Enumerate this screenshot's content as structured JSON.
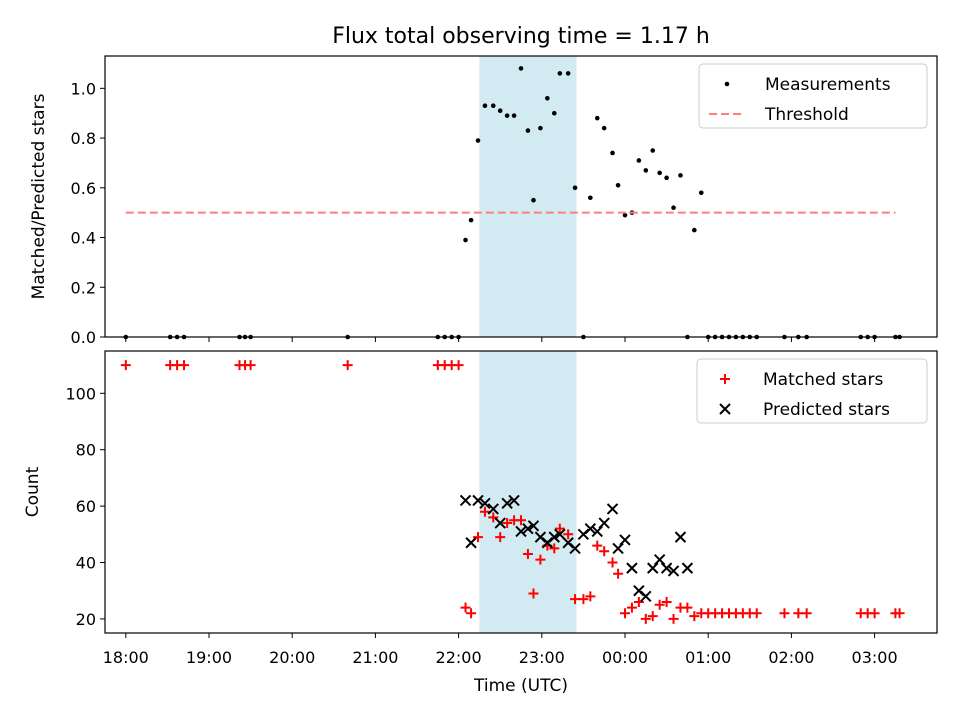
{
  "figure": {
    "title": "Flux total observing time = 1.17 h"
  },
  "chart_data": [
    {
      "type": "scatter",
      "ylabel": "Matched/Predicted stars",
      "xlim": [
        "17:45",
        "03:45"
      ],
      "ylim": [
        0,
        1.13
      ],
      "yticks": [
        "0.0",
        "0.2",
        "0.4",
        "0.6",
        "0.8",
        "1.0"
      ],
      "highlight_span": [
        "22:15",
        "23:25"
      ],
      "highlight_color": "#add8e6",
      "legend": {
        "placement": "top-right",
        "entries": [
          "Measurements",
          "Threshold"
        ]
      },
      "series": [
        {
          "name": "Measurements",
          "marker": "dot",
          "color": "#000000",
          "points": [
            [
              "18:00",
              0
            ],
            [
              "18:32",
              0
            ],
            [
              "18:37",
              0
            ],
            [
              "18:42",
              0
            ],
            [
              "19:22",
              0
            ],
            [
              "19:26",
              0
            ],
            [
              "19:30",
              0
            ],
            [
              "20:40",
              0
            ],
            [
              "21:45",
              0
            ],
            [
              "21:50",
              0
            ],
            [
              "21:55",
              0
            ],
            [
              "22:00",
              0
            ],
            [
              "22:05",
              0.39
            ],
            [
              "22:09",
              0.47
            ],
            [
              "22:14",
              0.79
            ],
            [
              "22:19",
              0.93
            ],
            [
              "22:25",
              0.93
            ],
            [
              "22:30",
              0.91
            ],
            [
              "22:35",
              0.89
            ],
            [
              "22:40",
              0.89
            ],
            [
              "22:45",
              1.08
            ],
            [
              "22:50",
              0.83
            ],
            [
              "22:54",
              0.55
            ],
            [
              "22:59",
              0.84
            ],
            [
              "23:04",
              0.96
            ],
            [
              "23:09",
              0.9
            ],
            [
              "23:13",
              1.06
            ],
            [
              "23:19",
              1.06
            ],
            [
              "23:24",
              0.6
            ],
            [
              "23:30",
              0
            ],
            [
              "23:35",
              0.56
            ],
            [
              "23:40",
              0.88
            ],
            [
              "23:45",
              0.84
            ],
            [
              "23:51",
              0.74
            ],
            [
              "23:55",
              0.61
            ],
            [
              "00:00",
              0.49
            ],
            [
              "00:05",
              0.5
            ],
            [
              "00:10",
              0.71
            ],
            [
              "00:15",
              0.67
            ],
            [
              "00:20",
              0.75
            ],
            [
              "00:25",
              0.66
            ],
            [
              "00:30",
              0.64
            ],
            [
              "00:35",
              0.52
            ],
            [
              "00:40",
              0.65
            ],
            [
              "00:45",
              0
            ],
            [
              "00:50",
              0.43
            ],
            [
              "00:55",
              0.58
            ],
            [
              "01:00",
              0
            ],
            [
              "01:05",
              0
            ],
            [
              "01:10",
              0
            ],
            [
              "01:15",
              0
            ],
            [
              "01:20",
              0
            ],
            [
              "01:25",
              0
            ],
            [
              "01:30",
              0
            ],
            [
              "01:35",
              0
            ],
            [
              "01:55",
              0
            ],
            [
              "02:05",
              0
            ],
            [
              "02:11",
              0
            ],
            [
              "02:50",
              0
            ],
            [
              "02:55",
              0
            ],
            [
              "03:00",
              0
            ],
            [
              "03:15",
              0
            ],
            [
              "03:18",
              0
            ]
          ]
        },
        {
          "name": "Threshold",
          "style": "dashed",
          "color": "#ff7f7f",
          "points": [
            [
              "18:00",
              0.5
            ],
            [
              "03:15",
              0.5
            ]
          ]
        }
      ]
    },
    {
      "type": "scatter",
      "xlabel": "Time (UTC)",
      "ylabel": "Count",
      "xticks": [
        "18:00",
        "19:00",
        "20:00",
        "21:00",
        "22:00",
        "23:00",
        "00:00",
        "01:00",
        "02:00",
        "03:00"
      ],
      "xlim": [
        "17:45",
        "03:45"
      ],
      "ylim": [
        15,
        115
      ],
      "yticks": [
        "20",
        "40",
        "60",
        "80",
        "100"
      ],
      "highlight_span": [
        "22:15",
        "23:25"
      ],
      "highlight_color": "#add8e6",
      "legend": {
        "placement": "top-right",
        "entries": [
          "Matched stars",
          "Predicted stars"
        ]
      },
      "series": [
        {
          "name": "Matched stars",
          "marker": "plus",
          "color": "#ff0000",
          "points": [
            [
              "18:00",
              110
            ],
            [
              "18:32",
              110
            ],
            [
              "18:37",
              110
            ],
            [
              "18:42",
              110
            ],
            [
              "19:22",
              110
            ],
            [
              "19:26",
              110
            ],
            [
              "19:30",
              110
            ],
            [
              "20:40",
              110
            ],
            [
              "21:45",
              110
            ],
            [
              "21:50",
              110
            ],
            [
              "21:55",
              110
            ],
            [
              "22:00",
              110
            ],
            [
              "22:05",
              24
            ],
            [
              "22:09",
              22
            ],
            [
              "22:14",
              49
            ],
            [
              "22:19",
              58
            ],
            [
              "22:25",
              56
            ],
            [
              "22:30",
              49
            ],
            [
              "22:35",
              54
            ],
            [
              "22:40",
              55
            ],
            [
              "22:45",
              55
            ],
            [
              "22:50",
              43
            ],
            [
              "22:54",
              29
            ],
            [
              "22:59",
              41
            ],
            [
              "23:04",
              46
            ],
            [
              "23:09",
              45
            ],
            [
              "23:13",
              52
            ],
            [
              "23:19",
              50
            ],
            [
              "23:24",
              27
            ],
            [
              "23:30",
              27
            ],
            [
              "23:35",
              28
            ],
            [
              "23:40",
              46
            ],
            [
              "23:45",
              44
            ],
            [
              "23:51",
              40
            ],
            [
              "23:55",
              36
            ],
            [
              "00:00",
              22
            ],
            [
              "00:05",
              24
            ],
            [
              "00:10",
              26
            ],
            [
              "00:15",
              20
            ],
            [
              "00:20",
              21
            ],
            [
              "00:25",
              25
            ],
            [
              "00:30",
              26
            ],
            [
              "00:35",
              20
            ],
            [
              "00:40",
              24
            ],
            [
              "00:45",
              24
            ],
            [
              "00:50",
              21
            ],
            [
              "00:55",
              22
            ],
            [
              "01:00",
              22
            ],
            [
              "01:05",
              22
            ],
            [
              "01:10",
              22
            ],
            [
              "01:15",
              22
            ],
            [
              "01:20",
              22
            ],
            [
              "01:25",
              22
            ],
            [
              "01:30",
              22
            ],
            [
              "01:35",
              22
            ],
            [
              "01:55",
              22
            ],
            [
              "02:05",
              22
            ],
            [
              "02:11",
              22
            ],
            [
              "02:50",
              22
            ],
            [
              "02:55",
              22
            ],
            [
              "03:00",
              22
            ],
            [
              "03:15",
              22
            ],
            [
              "03:18",
              22
            ]
          ]
        },
        {
          "name": "Predicted stars",
          "marker": "x",
          "color": "#000000",
          "points": [
            [
              "22:05",
              62
            ],
            [
              "22:09",
              47
            ],
            [
              "22:14",
              62
            ],
            [
              "22:19",
              61
            ],
            [
              "22:25",
              59
            ],
            [
              "22:30",
              54
            ],
            [
              "22:35",
              61
            ],
            [
              "22:40",
              62
            ],
            [
              "22:45",
              51
            ],
            [
              "22:50",
              52
            ],
            [
              "22:54",
              53
            ],
            [
              "22:59",
              49
            ],
            [
              "23:04",
              47
            ],
            [
              "23:09",
              49
            ],
            [
              "23:13",
              50
            ],
            [
              "23:19",
              47
            ],
            [
              "23:24",
              45
            ],
            [
              "23:30",
              50
            ],
            [
              "23:35",
              52
            ],
            [
              "23:40",
              51
            ],
            [
              "23:45",
              54
            ],
            [
              "23:51",
              59
            ],
            [
              "23:55",
              45
            ],
            [
              "00:00",
              48
            ],
            [
              "00:05",
              38
            ],
            [
              "00:10",
              30
            ],
            [
              "00:15",
              28
            ],
            [
              "00:20",
              38
            ],
            [
              "00:25",
              41
            ],
            [
              "00:30",
              38
            ],
            [
              "00:35",
              37
            ],
            [
              "00:40",
              49
            ],
            [
              "00:45",
              38
            ]
          ]
        }
      ]
    }
  ]
}
